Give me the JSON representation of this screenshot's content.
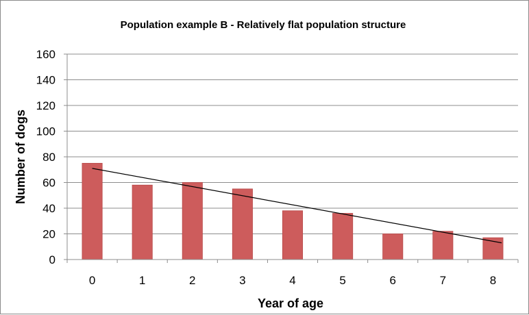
{
  "chart_data": {
    "type": "bar",
    "title": "Population example B - Relatively flat population structure",
    "xlabel": "Year of age",
    "ylabel": "Number of dogs",
    "categories": [
      "0",
      "1",
      "2",
      "3",
      "4",
      "5",
      "6",
      "7",
      "8"
    ],
    "values": [
      75,
      58,
      60,
      55,
      38,
      36,
      20,
      22,
      17
    ],
    "ylim": [
      0,
      160
    ],
    "yticks": [
      "0",
      "20",
      "40",
      "60",
      "80",
      "100",
      "120",
      "140",
      "160"
    ],
    "trendline": {
      "type": "linear",
      "start": 71,
      "end": 13
    },
    "grid": true,
    "legend": "none",
    "colors": {
      "bar": "#cd5c5c",
      "bar_edge": "#b84a4a",
      "grid": "#8c8c8c",
      "trend": "#000000"
    }
  }
}
